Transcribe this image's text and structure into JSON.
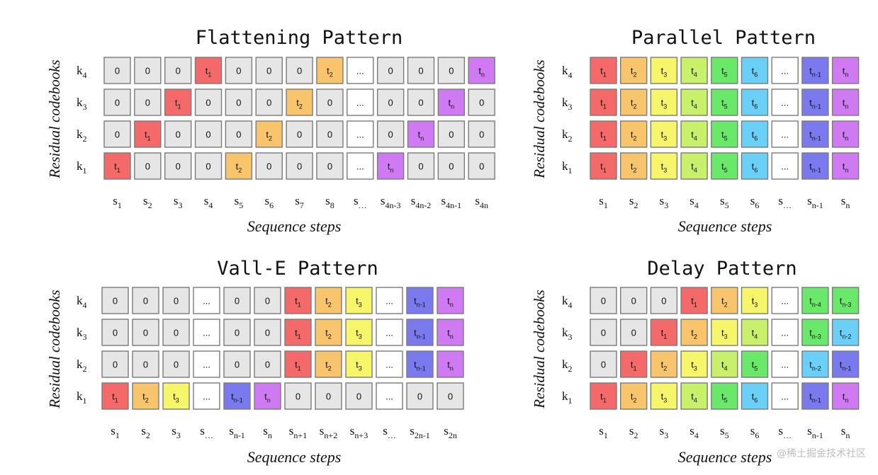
{
  "colors": {
    "zero": "#e6e6e6",
    "ellipsis": "#ffffff",
    "t1": "#f46a6a",
    "t2": "#f8c56c",
    "t3": "#f7f56a",
    "t4": "#c8f06a",
    "t5": "#6ae86a",
    "t6": "#6ad0f8",
    "tn-4": "#6ae86a",
    "tn-3": "#6ae86a",
    "tn-2": "#6ad0f8",
    "tn-1": "#7a7aee",
    "tn": "#cf7af2"
  },
  "watermark": "@稀土掘金技术社区",
  "panels": [
    {
      "id": "flattening",
      "title": "Flattening Pattern",
      "ylabel": "Residual codebooks",
      "xlabel": "Sequence steps",
      "rows": [
        [
          "k",
          "4"
        ],
        [
          "k",
          "3"
        ],
        [
          "k",
          "2"
        ],
        [
          "k",
          "1"
        ]
      ],
      "cols": [
        [
          "s",
          "1"
        ],
        [
          "s",
          "2"
        ],
        [
          "s",
          "3"
        ],
        [
          "s",
          "4"
        ],
        [
          "s",
          "5"
        ],
        [
          "s",
          "6"
        ],
        [
          "s",
          "7"
        ],
        [
          "s",
          "8"
        ],
        [
          "s",
          "…"
        ],
        [
          "s",
          "4n-3"
        ],
        [
          "s",
          "4n-2"
        ],
        [
          "s",
          "4n-1"
        ],
        [
          "s",
          "4n"
        ]
      ],
      "grid": [
        [
          "0",
          "0",
          "0",
          "t1",
          "0",
          "0",
          "0",
          "t2",
          "...",
          "0",
          "0",
          "0",
          "tn"
        ],
        [
          "0",
          "0",
          "t1",
          "0",
          "0",
          "0",
          "t2",
          "0",
          "...",
          "0",
          "0",
          "tn",
          "0"
        ],
        [
          "0",
          "t1",
          "0",
          "0",
          "0",
          "t2",
          "0",
          "0",
          "...",
          "0",
          "tn",
          "0",
          "0"
        ],
        [
          "t1",
          "0",
          "0",
          "0",
          "t2",
          "0",
          "0",
          "0",
          "...",
          "tn",
          "0",
          "0",
          "0"
        ]
      ]
    },
    {
      "id": "parallel",
      "title": "Parallel Pattern",
      "ylabel": "Residual codebooks",
      "xlabel": "Sequence steps",
      "rows": [
        [
          "k",
          "4"
        ],
        [
          "k",
          "3"
        ],
        [
          "k",
          "2"
        ],
        [
          "k",
          "1"
        ]
      ],
      "cols": [
        [
          "s",
          "1"
        ],
        [
          "s",
          "2"
        ],
        [
          "s",
          "3"
        ],
        [
          "s",
          "4"
        ],
        [
          "s",
          "5"
        ],
        [
          "s",
          "6"
        ],
        [
          "s",
          "…"
        ],
        [
          "s",
          "n-1"
        ],
        [
          "s",
          "n"
        ]
      ],
      "grid": [
        [
          "t1",
          "t2",
          "t3",
          "t4",
          "t5",
          "t6",
          "...",
          "tn-1",
          "tn"
        ],
        [
          "t1",
          "t2",
          "t3",
          "t4",
          "t5",
          "t6",
          "...",
          "tn-1",
          "tn"
        ],
        [
          "t1",
          "t2",
          "t3",
          "t4",
          "t5",
          "t6",
          "...",
          "tn-1",
          "tn"
        ],
        [
          "t1",
          "t2",
          "t3",
          "t4",
          "t5",
          "t6",
          "...",
          "tn-1",
          "tn"
        ]
      ]
    },
    {
      "id": "valle",
      "title": "Vall-E Pattern",
      "ylabel": "Residual codebooks",
      "xlabel": "Sequence steps",
      "rows": [
        [
          "k",
          "4"
        ],
        [
          "k",
          "3"
        ],
        [
          "k",
          "2"
        ],
        [
          "k",
          "1"
        ]
      ],
      "cols": [
        [
          "s",
          "1"
        ],
        [
          "s",
          "2"
        ],
        [
          "s",
          "3"
        ],
        [
          "s",
          "…"
        ],
        [
          "s",
          "n-1"
        ],
        [
          "s",
          "n"
        ],
        [
          "s",
          "n+1"
        ],
        [
          "s",
          "n+2"
        ],
        [
          "s",
          "n+3"
        ],
        [
          "s",
          "…"
        ],
        [
          "s",
          "2n-1"
        ],
        [
          "s",
          "2n"
        ]
      ],
      "grid": [
        [
          "0",
          "0",
          "0",
          "...",
          "0",
          "0",
          "t1",
          "t2",
          "t3",
          "...",
          "tn-1",
          "tn"
        ],
        [
          "0",
          "0",
          "0",
          "...",
          "0",
          "0",
          "t1",
          "t2",
          "t3",
          "...",
          "tn-1",
          "tn"
        ],
        [
          "0",
          "0",
          "0",
          "...",
          "0",
          "0",
          "t1",
          "t2",
          "t3",
          "...",
          "tn-1",
          "tn"
        ],
        [
          "t1",
          "t2",
          "t3",
          "...",
          "tn-1",
          "tn",
          "0",
          "0",
          "0",
          "...",
          "0",
          "0"
        ]
      ]
    },
    {
      "id": "delay",
      "title": "Delay Pattern",
      "ylabel": "Residual codebooks",
      "xlabel": "Sequence steps",
      "rows": [
        [
          "k",
          "4"
        ],
        [
          "k",
          "3"
        ],
        [
          "k",
          "2"
        ],
        [
          "k",
          "1"
        ]
      ],
      "cols": [
        [
          "s",
          "1"
        ],
        [
          "s",
          "2"
        ],
        [
          "s",
          "3"
        ],
        [
          "s",
          "4"
        ],
        [
          "s",
          "5"
        ],
        [
          "s",
          "6"
        ],
        [
          "s",
          "…"
        ],
        [
          "s",
          "n-1"
        ],
        [
          "s",
          "n"
        ]
      ],
      "grid": [
        [
          "0",
          "0",
          "0",
          "t1",
          "t2",
          "t3",
          "...",
          "tn-4",
          "tn-3"
        ],
        [
          "0",
          "0",
          "t1",
          "t2",
          "t3",
          "t4",
          "...",
          "tn-3",
          "tn-2"
        ],
        [
          "0",
          "t1",
          "t2",
          "t3",
          "t4",
          "t5",
          "...",
          "tn-2",
          "tn-1"
        ],
        [
          "t1",
          "t2",
          "t3",
          "t4",
          "t5",
          "t6",
          "...",
          "tn-1",
          "tn"
        ]
      ]
    }
  ]
}
